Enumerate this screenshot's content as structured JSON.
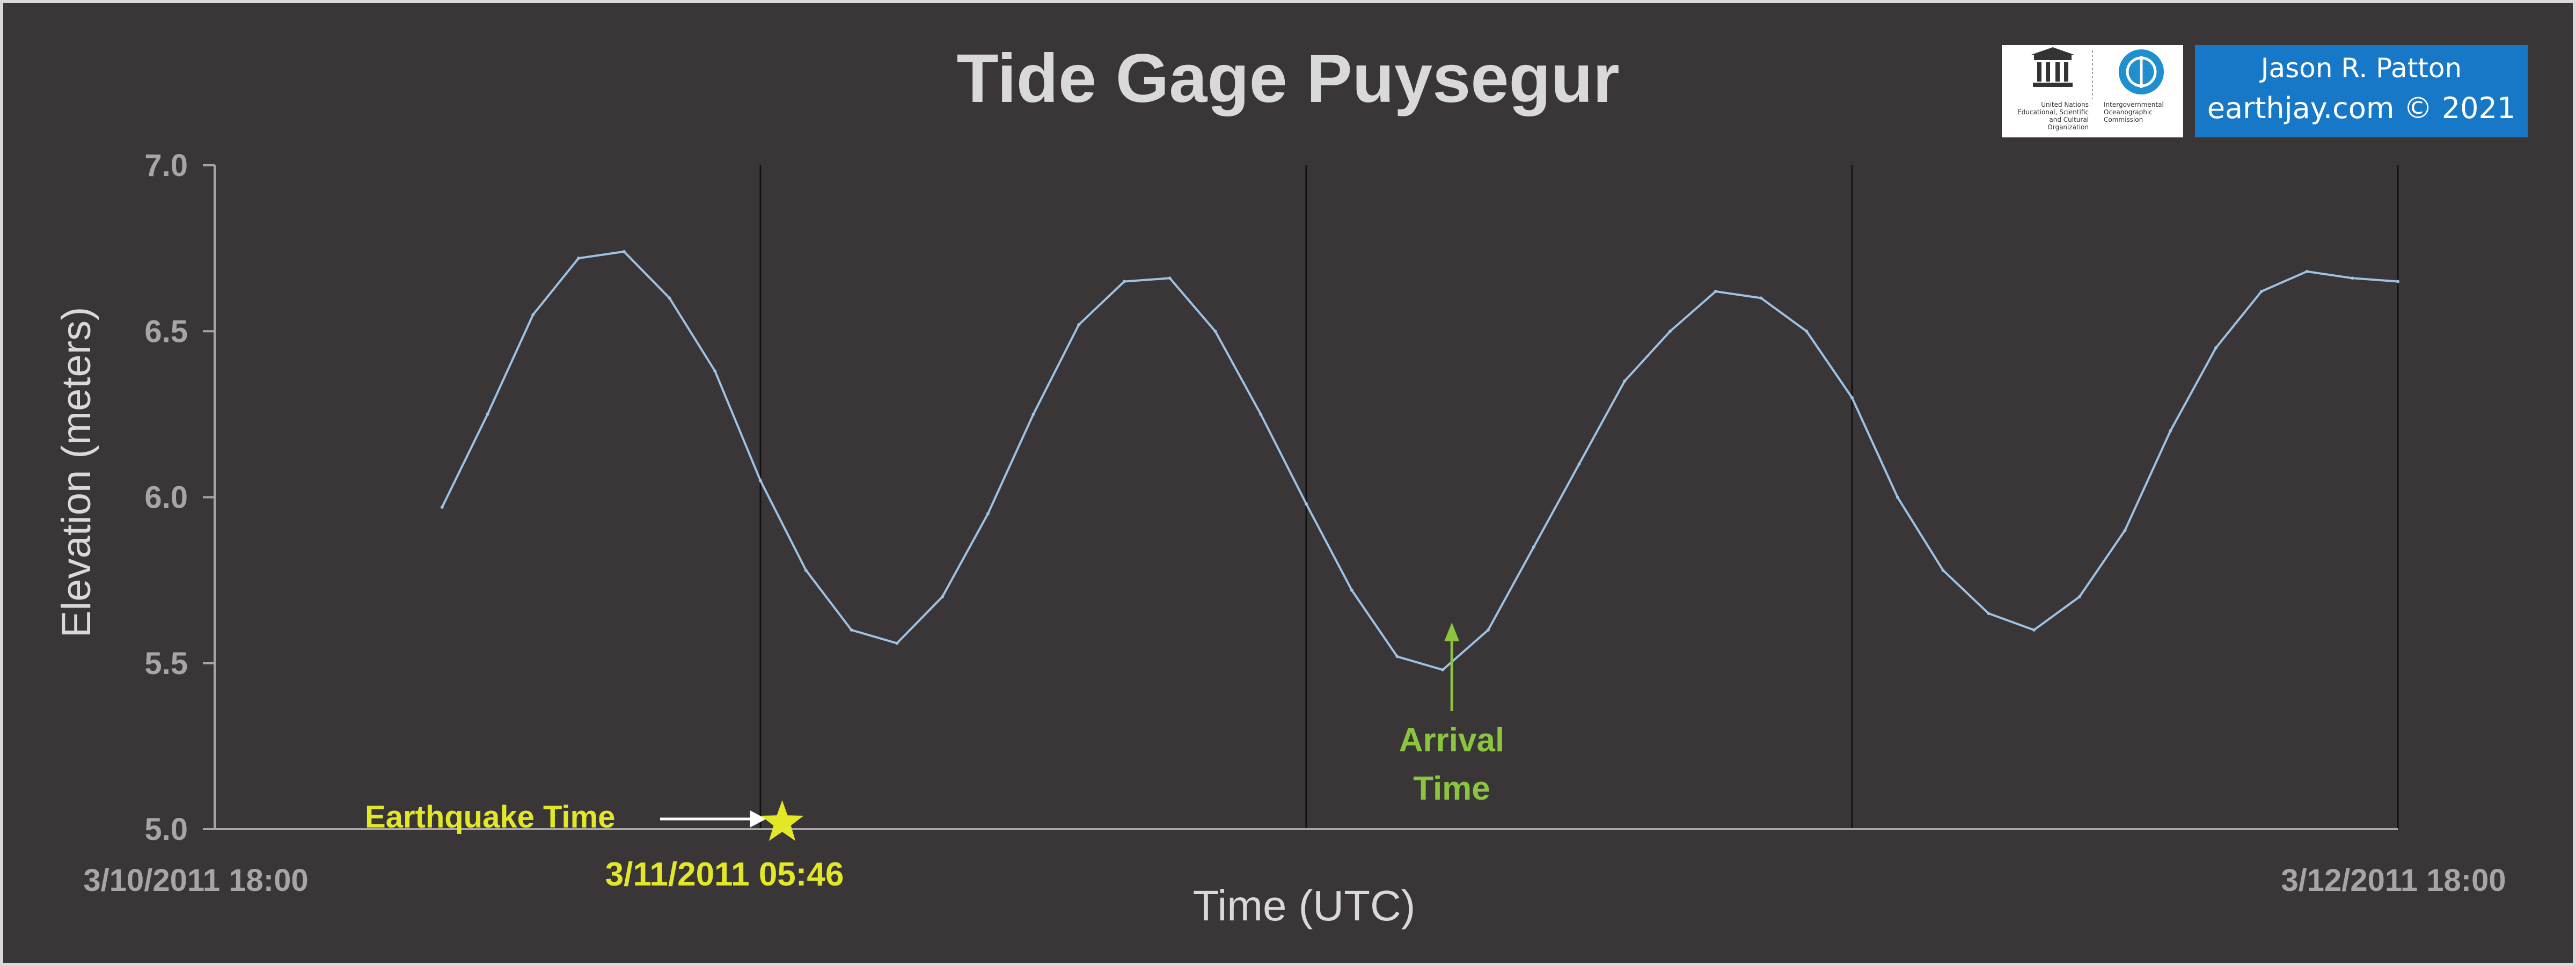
{
  "chart_data": {
    "type": "line",
    "title": "Tide Gage Puysegur",
    "xlabel": "Time (UTC)",
    "ylabel": "Elevation (meters)",
    "x_tick_labels": [
      "3/10/2011 18:00",
      "3/12/2011 18:00"
    ],
    "xlim_hours_from_start": [
      0,
      48
    ],
    "ylim": [
      5.0,
      7.0
    ],
    "y_ticks": [
      "5.0",
      "5.5",
      "6.0",
      "6.5",
      "7.0"
    ],
    "grid": "vertical lines every 12 hours",
    "series": [
      {
        "color": "#9cc3e6",
        "x_hours": [
          5.0,
          6.0,
          7.0,
          8.0,
          9.0,
          10.0,
          11.0,
          12.0,
          13.0,
          14.0,
          15.0,
          16.0,
          17.0,
          18.0,
          19.0,
          20.0,
          21.0,
          22.0,
          23.0,
          24.0,
          25.0,
          26.0,
          27.0,
          28.0,
          29.0,
          30.0,
          31.0,
          32.0,
          33.0,
          34.0,
          35.0,
          36.0,
          37.0,
          38.0,
          39.0,
          40.0,
          41.0,
          42.0,
          43.0,
          44.0,
          45.0,
          46.0,
          47.0,
          48.0
        ],
        "values": [
          5.97,
          6.25,
          6.55,
          6.72,
          6.74,
          6.6,
          6.38,
          6.05,
          5.78,
          5.6,
          5.56,
          5.7,
          5.95,
          6.25,
          6.52,
          6.65,
          6.66,
          6.5,
          6.25,
          5.98,
          5.72,
          5.52,
          5.48,
          5.6,
          5.85,
          6.1,
          6.35,
          6.5,
          6.62,
          6.6,
          6.5,
          6.3,
          6.0,
          5.78,
          5.65,
          5.6,
          5.7,
          5.9,
          6.2,
          6.45,
          6.62,
          6.68,
          6.66,
          6.65
        ]
      }
    ],
    "annotations": [
      {
        "text": "Earthquake Time",
        "time_label": "3/11/2011 05:46",
        "x_hours": 11.77,
        "color": "#e2e826"
      },
      {
        "text_line1": "Arrival",
        "text_line2": "Time",
        "x_hours": 27.2,
        "color": "#8bc53f"
      }
    ]
  },
  "credits": {
    "author": "Jason R. Patton",
    "site": "earthjay.com © 2021",
    "unesco": "United Nations Educational, Scientific and Cultural Organization",
    "ioc": "Intergovernmental Oceanographic Commission"
  },
  "colors": {
    "background": "#3a3638",
    "axis": "#a6a6a6",
    "text": "#d9d9d9",
    "credit_bg": "#1878c8"
  }
}
